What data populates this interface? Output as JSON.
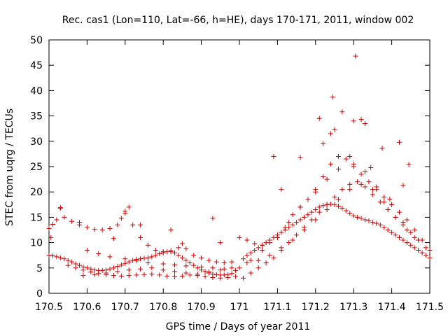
{
  "chart_data": {
    "type": "scatter",
    "title": "Rec. cas1 (Lon=110, Lat=-66, h=HE), days 170-171, 2011, window 002",
    "xlabel": "GPS time / Days of year 2011",
    "ylabel": "STEC from uqrg / TECUs",
    "xlim": [
      170.5,
      171.5
    ],
    "ylim": [
      0,
      50
    ],
    "xticks": [
      170.5,
      170.6,
      170.7,
      170.8,
      170.9,
      171,
      171.1,
      171.2,
      171.3,
      171.4,
      171.5
    ],
    "xtick_labels": [
      "170.5",
      "170.6",
      "170.7",
      "170.8",
      "170.9",
      "171",
      "171.1",
      "171.2",
      "171.3",
      "171.4",
      "171.5"
    ],
    "yticks": [
      0,
      5,
      10,
      15,
      20,
      25,
      30,
      35,
      40,
      45,
      50
    ],
    "ytick_labels": [
      "0",
      "5",
      "10",
      "15",
      "20",
      "25",
      "30",
      "35",
      "40",
      "45",
      "50"
    ],
    "grid": false,
    "legend": "none",
    "marker": "+",
    "color": "#cc0000",
    "series": [
      {
        "x": [
          170.5,
          170.51,
          170.52,
          170.53,
          170.54,
          170.55,
          170.56,
          170.57,
          170.58,
          170.59,
          170.6,
          170.61,
          170.62,
          170.63,
          170.64,
          170.65,
          170.66,
          170.67,
          170.68,
          170.69,
          170.7,
          170.71,
          170.72,
          170.73,
          170.74,
          170.75,
          170.76,
          170.77,
          170.78,
          170.79,
          170.8,
          170.81,
          170.82,
          170.83,
          170.84,
          170.85,
          170.86,
          170.87,
          170.88,
          170.89,
          170.9,
          170.91,
          170.92,
          170.93,
          170.94,
          170.95,
          170.96,
          170.97,
          170.98,
          170.99,
          171.01,
          171.02,
          171.03,
          171.04,
          171.05,
          171.06,
          171.07,
          171.08,
          171.09,
          171.1,
          171.11,
          171.12,
          171.13,
          171.14,
          171.15,
          171.16,
          171.17,
          171.18,
          171.19,
          171.2,
          171.21,
          171.22,
          171.23,
          171.24,
          171.25,
          171.26,
          171.27,
          171.28,
          171.29,
          171.3,
          171.31,
          171.32,
          171.33,
          171.34,
          171.35,
          171.36,
          171.37,
          171.38,
          171.39,
          171.4,
          171.41,
          171.42,
          171.43,
          171.44,
          171.45,
          171.46,
          171.47,
          171.48,
          171.49,
          171.5
        ],
        "y": [
          7.5,
          7.4,
          7.2,
          7.0,
          6.8,
          6.5,
          6.2,
          5.8,
          5.5,
          5.2,
          5.0,
          4.8,
          4.6,
          4.5,
          4.5,
          4.6,
          4.8,
          5.0,
          5.3,
          5.6,
          5.9,
          6.2,
          6.5,
          6.7,
          6.8,
          6.9,
          7.0,
          7.2,
          7.5,
          7.8,
          8.0,
          8.2,
          8.2,
          8.0,
          7.5,
          7.0,
          6.5,
          6.0,
          5.5,
          5.0,
          4.6,
          4.3,
          4.0,
          3.8,
          3.7,
          3.6,
          3.6,
          3.7,
          3.9,
          4.5,
          6.8,
          7.5,
          8.0,
          8.5,
          9.0,
          9.5,
          10.0,
          10.5,
          11.0,
          11.5,
          12.0,
          12.5,
          13.0,
          13.5,
          14.0,
          14.5,
          15.0,
          15.5,
          16.0,
          16.5,
          17.0,
          17.3,
          17.5,
          17.6,
          17.5,
          17.2,
          16.8,
          16.3,
          15.8,
          15.3,
          15.0,
          14.8,
          14.5,
          14.3,
          14.0,
          13.8,
          13.5,
          13.0,
          12.5,
          12.0,
          11.5,
          11.0,
          10.5,
          10.0,
          9.5,
          9.0,
          8.5,
          8.0,
          7.5,
          7.0
        ]
      },
      {
        "x": [
          170.5,
          170.51,
          170.52,
          170.53,
          170.54,
          170.56,
          170.58,
          170.6,
          170.62,
          170.64,
          170.66,
          170.68,
          170.69,
          170.7,
          170.71,
          170.72,
          170.74,
          170.76,
          170.78,
          170.8,
          170.82,
          170.84,
          170.85,
          170.86,
          170.88,
          170.9,
          170.92,
          170.94,
          170.96,
          170.98,
          171.0,
          171.02,
          171.04,
          171.06,
          171.08,
          171.1,
          171.12,
          171.14,
          171.16,
          171.18,
          171.2,
          171.22,
          171.24,
          171.26,
          171.28,
          171.3,
          171.32,
          171.34,
          171.36,
          171.38,
          171.4,
          171.42,
          171.44,
          171.46,
          171.48,
          171.5
        ],
        "y": [
          12.8,
          13.6,
          14.5,
          16.8,
          15.0,
          14.2,
          13.5,
          13.0,
          12.6,
          12.5,
          12.8,
          13.5,
          14.8,
          15.8,
          17.0,
          13.5,
          11.0,
          9.5,
          8.5,
          8.2,
          8.4,
          9.0,
          9.8,
          8.8,
          7.5,
          7.0,
          6.5,
          6.2,
          6.0,
          6.2,
          11.0,
          10.5,
          9.8,
          9.5,
          10.0,
          11.0,
          13.0,
          15.5,
          17.0,
          18.5,
          20.5,
          23.0,
          25.5,
          27.0,
          26.5,
          25.0,
          23.5,
          22.0,
          20.5,
          19.0,
          17.5,
          16.0,
          14.5,
          12.5,
          10.5,
          8.5
        ]
      },
      {
        "x": [
          170.55,
          170.57,
          170.59,
          170.61,
          170.63,
          170.65,
          170.67,
          170.69,
          170.71,
          170.73,
          170.75,
          170.77,
          170.79,
          170.81,
          170.83,
          170.85,
          170.87,
          170.89,
          170.91,
          170.93,
          170.95,
          170.97,
          170.99,
          171.01,
          171.03,
          171.05,
          171.07,
          171.09,
          171.11,
          171.13,
          171.15,
          171.17,
          171.19,
          171.21,
          171.23,
          171.25,
          171.27,
          171.29,
          171.31,
          171.33,
          171.35,
          171.37,
          171.39,
          171.41,
          171.43,
          171.45,
          171.47,
          171.49
        ],
        "y": [
          5.5,
          5.0,
          4.6,
          4.2,
          3.9,
          3.7,
          3.5,
          3.4,
          3.5,
          3.6,
          3.7,
          3.8,
          3.6,
          3.4,
          3.3,
          3.4,
          3.6,
          3.5,
          3.3,
          3.1,
          3.0,
          3.1,
          3.3,
          3.0,
          4.0,
          5.0,
          6.0,
          7.0,
          8.5,
          10.0,
          11.5,
          13.0,
          14.5,
          16.0,
          17.5,
          19.0,
          20.5,
          21.5,
          22.0,
          21.0,
          19.5,
          18.0,
          16.5,
          15.0,
          13.5,
          12.0,
          10.5,
          9.0
        ]
      },
      {
        "x": [
          170.6,
          170.63,
          170.66,
          170.7,
          170.73,
          170.76,
          170.8,
          170.83,
          170.86,
          170.9,
          170.93,
          170.96,
          171.0,
          171.03,
          171.06,
          171.1,
          171.13,
          171.16,
          171.2,
          171.23,
          171.26,
          171.3,
          171.33,
          171.36,
          171.4,
          171.43,
          171.46
        ],
        "y": [
          8.5,
          7.8,
          7.2,
          6.8,
          6.4,
          6.0,
          5.8,
          5.6,
          5.4,
          5.2,
          5.0,
          4.8,
          5.0,
          6.5,
          8.5,
          11.0,
          14.0,
          17.0,
          20.0,
          22.5,
          24.5,
          25.5,
          24.0,
          21.0,
          17.5,
          14.0,
          11.0
        ]
      },
      {
        "x": [
          170.59,
          170.62,
          170.65,
          170.68,
          170.71,
          170.74,
          170.77,
          170.8,
          170.83,
          170.86,
          170.89,
          170.92,
          170.95,
          170.98,
          171.02,
          171.05,
          171.08,
          171.11,
          171.14,
          171.17,
          171.2,
          171.23,
          171.26,
          171.29,
          171.32,
          171.35,
          171.38,
          171.41,
          171.44,
          171.47
        ],
        "y": [
          3.5,
          3.7,
          4.0,
          4.3,
          4.6,
          4.8,
          5.0,
          4.6,
          4.3,
          4.0,
          3.8,
          4.2,
          4.6,
          5.0,
          6.0,
          6.5,
          7.5,
          9.0,
          10.5,
          12.5,
          14.5,
          16.5,
          18.5,
          20.5,
          21.5,
          20.5,
          18.0,
          15.0,
          12.5,
          10.5
        ]
      },
      {
        "x": [
          170.505,
          170.53,
          170.58,
          170.67,
          170.7,
          170.74,
          170.82,
          170.93,
          170.95,
          171.09,
          171.11,
          171.16,
          171.21,
          171.22,
          171.24,
          171.245,
          171.25,
          171.27,
          171.29,
          171.3,
          171.305,
          171.32,
          171.33,
          171.345,
          171.375,
          171.395,
          171.42,
          171.43,
          171.445
        ],
        "y": [
          11.0,
          16.9,
          14.0,
          10.8,
          16.2,
          13.5,
          12.5,
          14.8,
          10.0,
          27.0,
          20.5,
          26.8,
          34.5,
          29.5,
          31.5,
          38.7,
          32.3,
          35.8,
          27.0,
          34.0,
          46.8,
          34.3,
          33.5,
          24.8,
          28.6,
          18.6,
          29.8,
          21.3,
          25.4
        ]
      }
    ]
  }
}
